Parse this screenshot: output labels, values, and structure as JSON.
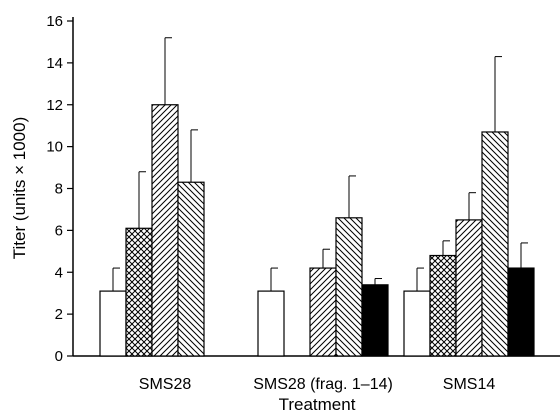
{
  "chart_data": {
    "type": "bar",
    "categories": [
      "SMS28",
      "SMS28 (frag. 1–14)",
      "SMS14"
    ],
    "xlabel": "Treatment",
    "ylabel": "Titer (units × 1000)",
    "ylim": [
      0,
      16
    ],
    "yticks": [
      0,
      2,
      4,
      6,
      8,
      10,
      12,
      14,
      16
    ],
    "grid": false,
    "series": [
      {
        "pattern": "open",
        "fill": "#ffffff",
        "values": [
          3.1,
          3.1,
          3.1
        ],
        "errors": [
          1.1,
          1.1,
          1.1
        ]
      },
      {
        "pattern": "cross-hatched",
        "fill": "#000000",
        "values": [
          6.1,
          null,
          4.8
        ],
        "errors": [
          2.7,
          null,
          0.7
        ]
      },
      {
        "pattern": "hatched",
        "fill": "#000000",
        "values": [
          12.0,
          4.2,
          6.5
        ],
        "errors": [
          3.2,
          0.9,
          1.3
        ]
      },
      {
        "pattern": "dense hatched",
        "fill": "#000000",
        "values": [
          8.3,
          6.6,
          10.7
        ],
        "errors": [
          2.5,
          2.0,
          3.6
        ]
      },
      {
        "pattern": "solid",
        "fill": "#000000",
        "values": [
          null,
          3.4,
          4.2
        ],
        "errors": [
          null,
          0.3,
          1.2
        ]
      }
    ]
  }
}
